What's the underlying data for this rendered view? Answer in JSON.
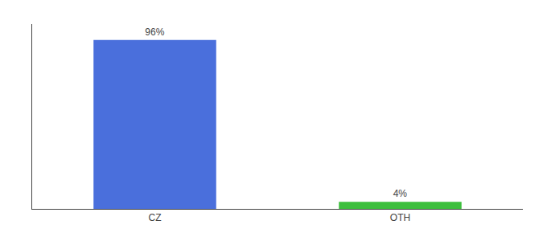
{
  "chart_data": {
    "type": "bar",
    "categories": [
      "CZ",
      "OTH"
    ],
    "values": [
      96,
      4
    ],
    "value_labels": [
      "96%",
      "4%"
    ],
    "colors": [
      "#4a6fdc",
      "#3dbf3d"
    ],
    "ylim": [
      0,
      105
    ],
    "data_labels": true,
    "tick_labels": "x",
    "grid": false
  }
}
